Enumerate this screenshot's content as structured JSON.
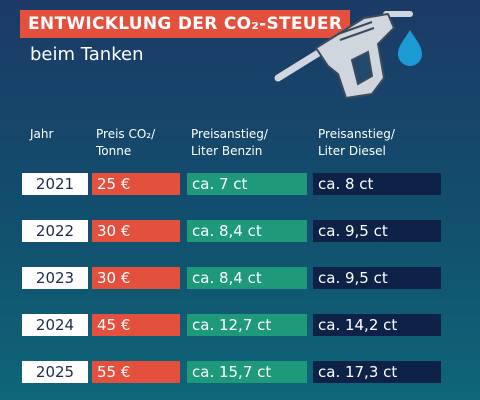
{
  "title": "ENTWICKLUNG DER CO₂-STEUER",
  "subtitle": "beim Tanken",
  "icon": "fuel-nozzle-icon",
  "colors": {
    "background_top": "#1c3a66",
    "background_bottom": "#0e6678",
    "price": "#e3503e",
    "benzin": "#1e9a7a",
    "diesel": "#0e2247",
    "year": "#ffffff"
  },
  "headers": {
    "year": "Jahr",
    "price_line1": "Preis CO₂/",
    "price_line2": "Tonne",
    "benzin_line1": "Preisanstieg/",
    "benzin_line2": "Liter Benzin",
    "diesel_line1": "Preisanstieg/",
    "diesel_line2": "Liter Diesel"
  },
  "rows": [
    {
      "year": "2021",
      "price": "25 €",
      "benzin": "ca. 7 ct",
      "diesel": "ca. 8 ct"
    },
    {
      "year": "2022",
      "price": "30 €",
      "benzin": "ca. 8,4 ct",
      "diesel": "ca. 9,5 ct"
    },
    {
      "year": "2023",
      "price": "30 €",
      "benzin": "ca. 8,4 ct",
      "diesel": "ca. 9,5 ct"
    },
    {
      "year": "2024",
      "price": "45 €",
      "benzin": "ca. 12,7 ct",
      "diesel": "ca. 14,2 ct"
    },
    {
      "year": "2025",
      "price": "55 €",
      "benzin": "ca. 15,7 ct",
      "diesel": "ca. 17,3 ct"
    }
  ]
}
